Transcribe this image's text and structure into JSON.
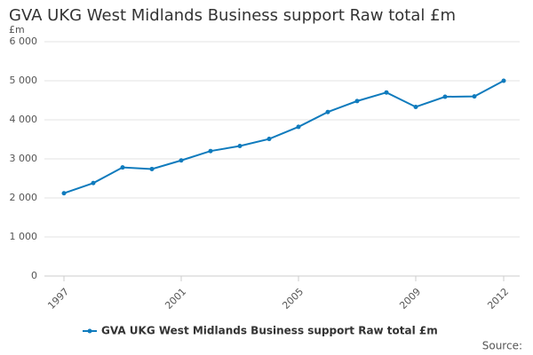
{
  "chart_data": {
    "type": "line",
    "title": "GVA UKG West Midlands Business support Raw total £m",
    "y_unit": "£m",
    "source": "Source:",
    "x": [
      1997,
      1998,
      1999,
      2000,
      2001,
      2002,
      2003,
      2004,
      2005,
      2006,
      2007,
      2008,
      2009,
      2010,
      2011,
      2012
    ],
    "series": [
      {
        "name": "GVA UKG West Midlands Business support Raw total £m",
        "color": "#0f7bbd",
        "values": [
          2120,
          2380,
          2780,
          2740,
          2960,
          3200,
          3330,
          3510,
          3820,
          4200,
          4480,
          4700,
          4330,
          4590,
          4600,
          5000
        ]
      }
    ],
    "xlim": [
      1997,
      2012
    ],
    "xticks": [
      1997,
      2001,
      2005,
      2009,
      2012
    ],
    "ylim": [
      0,
      6000
    ],
    "yticks": [
      0,
      {
        "value": 1000,
        "label": "1 000"
      },
      {
        "value": 2000,
        "label": "2 000"
      },
      {
        "value": 3000,
        "label": "3 000"
      },
      {
        "value": 4000,
        "label": "4 000"
      },
      {
        "value": 5000,
        "label": "5 000"
      },
      {
        "value": 6000,
        "label": "6 000"
      }
    ],
    "grid": true
  }
}
